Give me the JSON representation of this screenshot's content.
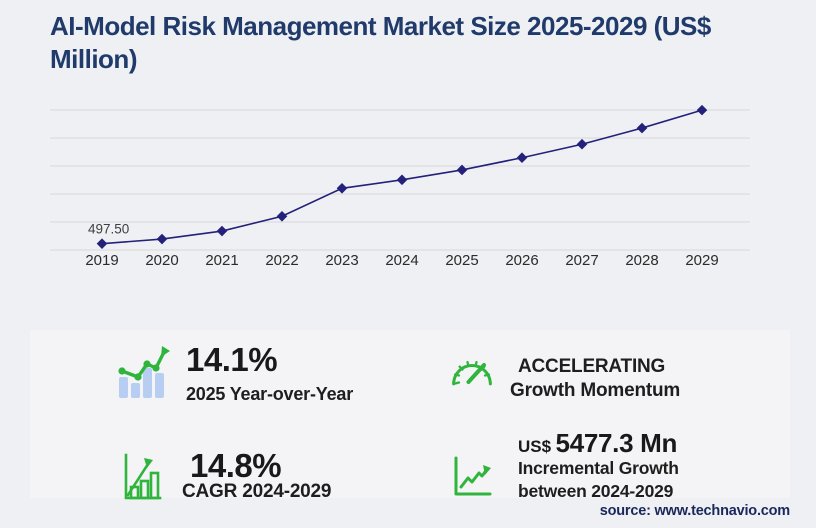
{
  "page": {
    "title": "AI-Model Risk Management Market Size 2025-2029 (US$ Million)",
    "source": "source: www.technavio.com"
  },
  "chart_data": {
    "type": "line",
    "title": "AI-Model Risk Management Market Size 2025-2029 (US$ Million)",
    "x": [
      "2019",
      "2020",
      "2021",
      "2022",
      "2023",
      "2024",
      "2025",
      "2026",
      "2027",
      "2028",
      "2029"
    ],
    "values": [
      497.5,
      860,
      1490,
      2650,
      4850,
      5512.7,
      6290,
      7250,
      8310,
      9580,
      10990
    ],
    "unit": "US$ Million",
    "ylim": [
      0,
      11000
    ],
    "gridlines": 6,
    "grid": "horizontal-only",
    "legend": "none",
    "first_point_label": "497.50",
    "marker": "diamond",
    "line_color": "#23217a",
    "grid_color": "#d9d9dc"
  },
  "stats": [
    {
      "icon": "bar-line-growth-icon",
      "value": "14.1%",
      "label": "2025 Year-over-Year"
    },
    {
      "icon": "gauge-icon",
      "value": "ACCELERATING",
      "label": "Growth Momentum"
    },
    {
      "icon": "bar-chart-arrow-icon",
      "value": "14.8%",
      "label": "CAGR 2024-2029"
    },
    {
      "icon": "line-growth-axis-icon",
      "value_prefix": "US$",
      "value": "5477.3 Mn",
      "label": "Incremental Growth",
      "label2": "between 2024-2029"
    }
  ],
  "colors": {
    "title_navy": "#1f3a6b",
    "line_navy": "#23217a",
    "accent_green": "#2fb43c",
    "bar_blue": "#b7cdf2",
    "panel_bg": "#f4f4f7",
    "page_bg": "#eff0f3"
  }
}
